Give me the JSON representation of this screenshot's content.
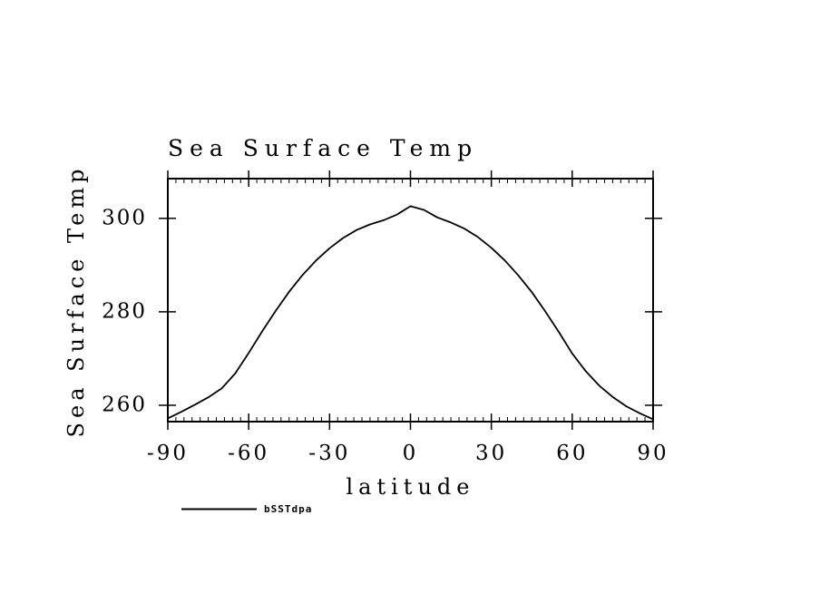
{
  "page": {
    "background": "#ffffff",
    "foreground": "#000000"
  },
  "chart_data": {
    "type": "line",
    "title": "Sea Surface Temp",
    "xlabel": "latitude",
    "ylabel": "Sea Surface Temp",
    "legend_label": "bSSTdpa",
    "line_color": "#000000",
    "grid": false,
    "legend_position": "bottom-left",
    "xlim": [
      -90,
      90
    ],
    "ylim": [
      256.5,
      308.5
    ],
    "x_tick_labels": [
      "-90",
      "-60",
      "-30",
      "0",
      "30",
      "60",
      "90"
    ],
    "x_tick_values": [
      -90,
      -60,
      -30,
      0,
      30,
      60,
      90
    ],
    "x_minor_step": 3,
    "y_tick_labels": [
      "300",
      "280",
      "260"
    ],
    "y_tick_values": [
      300,
      280,
      260
    ],
    "x": [
      -90,
      -85,
      -80,
      -75,
      -70,
      -65,
      -60,
      -55,
      -50,
      -45,
      -40,
      -35,
      -30,
      -25,
      -20,
      -15,
      -10,
      -5,
      0,
      5,
      10,
      15,
      20,
      25,
      30,
      35,
      40,
      45,
      50,
      55,
      60,
      65,
      70,
      75,
      80,
      85,
      90
    ],
    "values": [
      257.2,
      258.6,
      260.1,
      261.7,
      263.6,
      266.8,
      271.2,
      275.8,
      280.2,
      284.3,
      287.9,
      291.0,
      293.6,
      295.8,
      297.5,
      298.7,
      299.6,
      300.8,
      302.6,
      301.8,
      300.2,
      299.1,
      297.8,
      296.0,
      293.7,
      291.0,
      287.8,
      284.2,
      280.1,
      275.7,
      271.1,
      267.3,
      264.2,
      261.8,
      259.8,
      258.3,
      257.0
    ]
  }
}
